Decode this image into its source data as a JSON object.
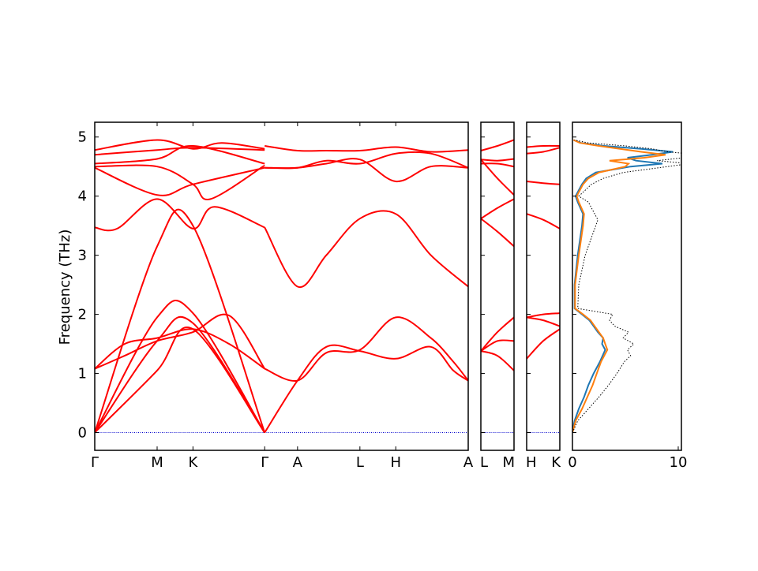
{
  "chart_data": {
    "type": "line",
    "ylabel": "Frequency (THz)",
    "ylim": [
      -0.3,
      5.25
    ],
    "yticks": [
      0,
      1,
      2,
      3,
      4,
      5
    ],
    "grid": false,
    "band_color": "#ff0000",
    "zero_line_color": "#0000cc",
    "panels": [
      {
        "id": "main",
        "xlim": [
          0,
          1
        ],
        "labels": [
          {
            "text": "Γ",
            "pos": 0.0
          },
          {
            "text": "M",
            "pos": 0.167
          },
          {
            "text": "K",
            "pos": 0.263
          },
          {
            "text": "Γ",
            "pos": 0.455
          },
          {
            "text": "A",
            "pos": 0.543
          },
          {
            "text": "L",
            "pos": 0.71
          },
          {
            "text": "H",
            "pos": 0.806
          },
          {
            "text": "A",
            "pos": 1.0
          }
        ],
        "bands": [
          {
            "x": [
              0,
              0.167,
              0.263,
              0.455
            ],
            "y": [
              0,
              1.05,
              1.75,
              0
            ]
          },
          {
            "x": [
              0,
              0.167,
              0.263,
              0.455
            ],
            "y": [
              0,
              1.55,
              1.85,
              0
            ]
          },
          {
            "x": [
              0,
              0.167,
              0.263,
              0.455
            ],
            "y": [
              0,
              1.95,
              2.02,
              0
            ]
          },
          {
            "x": [
              0,
              0.08,
              0.167,
              0.263,
              0.36,
              0.455
            ],
            "y": [
              1.08,
              1.3,
              1.55,
              1.7,
              1.98,
              1.08
            ]
          },
          {
            "x": [
              0,
              0.08,
              0.167,
              0.263,
              0.36,
              0.455
            ],
            "y": [
              1.08,
              1.5,
              1.6,
              1.75,
              1.5,
              1.08
            ]
          },
          {
            "x": [
              0,
              0.06,
              0.167,
              0.263,
              0.32,
              0.455
            ],
            "y": [
              3.47,
              3.45,
              3.95,
              3.45,
              3.82,
              3.47
            ]
          },
          {
            "x": [
              0,
              0.167,
              0.263,
              0.455
            ],
            "y": [
              0,
              3.15,
              3.5,
              0
            ]
          },
          {
            "x": [
              0,
              0.167,
              0.263,
              0.455
            ],
            "y": [
              4.48,
              4.02,
              4.2,
              4.48
            ]
          },
          {
            "x": [
              0,
              0.167,
              0.263,
              0.31,
              0.455
            ],
            "y": [
              4.5,
              4.5,
              4.2,
              3.95,
              4.52
            ]
          },
          {
            "x": [
              0,
              0.167,
              0.263,
              0.455
            ],
            "y": [
              4.55,
              4.63,
              4.85,
              4.55
            ]
          },
          {
            "x": [
              0,
              0.167,
              0.263,
              0.455
            ],
            "y": [
              4.7,
              4.78,
              4.82,
              4.78
            ]
          },
          {
            "x": [
              0,
              0.167,
              0.263,
              0.34,
              0.455
            ],
            "y": [
              4.78,
              4.95,
              4.8,
              4.9,
              4.8
            ]
          },
          {
            "x": [
              0.455,
              0.543,
              0.62,
              0.71,
              0.806,
              0.9,
              0.96,
              1.0
            ],
            "y": [
              0,
              0.88,
              1.45,
              1.38,
              1.25,
              1.45,
              1.05,
              0.88
            ]
          },
          {
            "x": [
              0.455,
              0.543,
              0.62,
              0.71,
              0.806,
              0.9,
              0.96,
              1.0
            ],
            "y": [
              1.08,
              0.88,
              1.35,
              1.4,
              1.95,
              1.6,
              1.2,
              0.88
            ]
          },
          {
            "x": [
              0.455,
              0.543,
              0.62,
              0.71,
              0.806,
              0.9,
              1.0
            ],
            "y": [
              3.47,
              2.47,
              3.0,
              3.62,
              3.7,
              3.0,
              2.47
            ]
          },
          {
            "x": [
              0.455,
              0.543,
              0.62,
              0.71,
              0.806,
              0.9,
              1.0
            ],
            "y": [
              4.48,
              4.48,
              4.55,
              4.62,
              4.25,
              4.5,
              4.48
            ]
          },
          {
            "x": [
              0.455,
              0.543,
              0.62,
              0.71,
              0.806,
              0.9,
              1.0
            ],
            "y": [
              4.48,
              4.48,
              4.6,
              4.55,
              4.72,
              4.72,
              4.48
            ]
          },
          {
            "x": [
              0.455,
              0.543,
              0.62,
              0.71,
              0.806,
              0.9,
              1.0
            ],
            "y": [
              4.85,
              4.77,
              4.77,
              4.77,
              4.83,
              4.75,
              4.78
            ]
          }
        ]
      },
      {
        "id": "L-M",
        "xlim": [
          0,
          1
        ],
        "labels": [
          {
            "text": "L",
            "pos": 0.0
          },
          {
            "text": "M",
            "pos": 1.0
          }
        ],
        "bands": [
          {
            "x": [
              0,
              0.5,
              1
            ],
            "y": [
              1.38,
              1.3,
              1.05
            ]
          },
          {
            "x": [
              0,
              0.5,
              1
            ],
            "y": [
              1.38,
              1.55,
              1.55
            ]
          },
          {
            "x": [
              0,
              0.5,
              1
            ],
            "y": [
              1.38,
              1.7,
              1.95
            ]
          },
          {
            "x": [
              0,
              0.5,
              1
            ],
            "y": [
              3.62,
              3.4,
              3.15
            ]
          },
          {
            "x": [
              0,
              0.5,
              1
            ],
            "y": [
              3.62,
              3.8,
              3.95
            ]
          },
          {
            "x": [
              0,
              0.5,
              1
            ],
            "y": [
              4.62,
              4.3,
              4.02
            ]
          },
          {
            "x": [
              0,
              0.5,
              1
            ],
            "y": [
              4.62,
              4.6,
              4.63
            ]
          },
          {
            "x": [
              0,
              0.5,
              1
            ],
            "y": [
              4.77,
              4.85,
              4.95
            ]
          },
          {
            "x": [
              0,
              0.5,
              1
            ],
            "y": [
              4.55,
              4.55,
              4.5
            ]
          }
        ]
      },
      {
        "id": "H-K",
        "xlim": [
          0,
          1
        ],
        "labels": [
          {
            "text": "H",
            "pos": 0.0
          },
          {
            "text": "K",
            "pos": 1.0
          }
        ],
        "bands": [
          {
            "x": [
              0,
              0.5,
              1
            ],
            "y": [
              1.25,
              1.55,
              1.75
            ]
          },
          {
            "x": [
              0,
              0.5,
              1
            ],
            "y": [
              1.95,
              1.9,
              1.8
            ]
          },
          {
            "x": [
              0,
              0.5,
              1
            ],
            "y": [
              1.95,
              2.0,
              2.02
            ]
          },
          {
            "x": [
              0,
              0.5,
              1
            ],
            "y": [
              3.7,
              3.6,
              3.45
            ]
          },
          {
            "x": [
              0,
              0.5,
              1
            ],
            "y": [
              4.25,
              4.22,
              4.2
            ]
          },
          {
            "x": [
              0,
              0.5,
              1
            ],
            "y": [
              4.72,
              4.75,
              4.82
            ]
          },
          {
            "x": [
              0,
              0.5,
              1
            ],
            "y": [
              4.83,
              4.85,
              4.85
            ]
          }
        ]
      }
    ],
    "dos": {
      "xlim": [
        0,
        10.3
      ],
      "xticks": [
        0,
        10
      ],
      "series": [
        {
          "color": "#1f77b4",
          "style": "solid",
          "freq": [
            0,
            0.2,
            0.4,
            0.6,
            0.8,
            1.0,
            1.2,
            1.4,
            1.5,
            1.6,
            1.7,
            1.8,
            1.9,
            2.0,
            2.1,
            2.5,
            3.0,
            3.5,
            3.7,
            3.9,
            4.0,
            4.1,
            4.2,
            4.3,
            4.4,
            4.5,
            4.55,
            4.6,
            4.65,
            4.7,
            4.75,
            4.8,
            4.85,
            4.9,
            4.95
          ],
          "dos": [
            0,
            0.2,
            0.6,
            1.1,
            1.5,
            2.0,
            2.6,
            3.1,
            2.8,
            2.9,
            2.4,
            2.0,
            1.6,
            0.9,
            0.2,
            0.2,
            0.5,
            0.9,
            1.0,
            0.5,
            0.3,
            0.6,
            0.9,
            1.3,
            2.2,
            5.5,
            8.5,
            6.0,
            5.2,
            7.5,
            9.5,
            6.5,
            3.0,
            0.8,
            0.1
          ]
        },
        {
          "color": "#ff7f0e",
          "style": "solid",
          "freq": [
            0,
            0.2,
            0.4,
            0.6,
            0.8,
            1.0,
            1.2,
            1.4,
            1.5,
            1.6,
            1.7,
            1.8,
            1.9,
            2.0,
            2.1,
            2.5,
            3.0,
            3.5,
            3.7,
            3.9,
            4.0,
            4.1,
            4.2,
            4.3,
            4.4,
            4.5,
            4.55,
            4.6,
            4.65,
            4.7,
            4.75,
            4.8,
            4.85,
            4.9,
            4.95
          ],
          "dos": [
            0,
            0.3,
            0.9,
            1.4,
            1.9,
            2.3,
            2.7,
            3.3,
            3.1,
            2.9,
            2.5,
            2.1,
            1.7,
            1.0,
            0.25,
            0.25,
            0.6,
            1.0,
            1.1,
            0.6,
            0.4,
            0.7,
            1.0,
            1.5,
            2.5,
            5.0,
            5.3,
            3.5,
            6.8,
            8.8,
            6.5,
            4.5,
            2.5,
            0.7,
            0.1
          ]
        },
        {
          "color": "#000000",
          "style": "dotted",
          "freq": [
            0,
            0.2,
            0.4,
            0.6,
            0.8,
            1.0,
            1.2,
            1.3,
            1.4,
            1.5,
            1.6,
            1.7,
            1.8,
            1.9,
            2.0,
            2.1,
            2.5,
            3.0,
            3.3,
            3.6,
            3.9,
            4.0,
            4.1,
            4.2,
            4.3,
            4.4,
            4.5,
            4.55,
            4.6,
            4.65,
            4.7,
            4.75,
            4.8,
            4.85,
            4.9,
            4.95
          ],
          "dos": [
            0,
            0.5,
            1.5,
            2.5,
            3.4,
            4.2,
            4.9,
            5.5,
            5.2,
            5.8,
            4.8,
            5.3,
            4.0,
            3.5,
            3.8,
            0.5,
            0.6,
            1.2,
            1.8,
            2.4,
            1.5,
            0.6,
            1.2,
            1.8,
            2.9,
            4.8,
            9.0,
            11.0,
            8.0,
            10.5,
            12.0,
            9.0,
            7.5,
            5.0,
            1.5,
            0.2
          ]
        }
      ]
    }
  }
}
